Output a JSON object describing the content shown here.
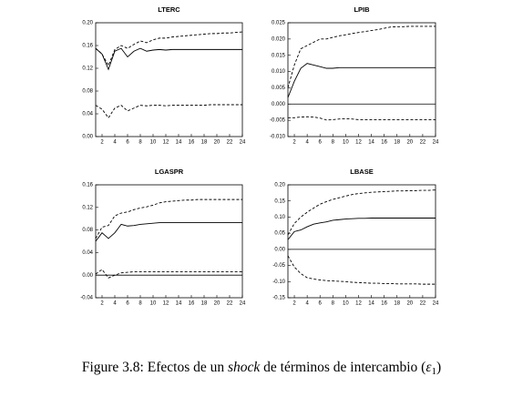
{
  "chart_data": [
    {
      "type": "line",
      "title": "LTERC",
      "x": [
        1,
        2,
        3,
        4,
        5,
        6,
        7,
        8,
        9,
        10,
        11,
        12,
        13,
        14,
        15,
        16,
        17,
        18,
        19,
        20,
        21,
        22,
        23,
        24
      ],
      "xlim": [
        1,
        24
      ],
      "xticks": [
        2,
        4,
        6,
        8,
        10,
        12,
        14,
        16,
        18,
        20,
        22,
        24
      ],
      "ylim": [
        0,
        0.2
      ],
      "yticks": [
        {
          "value": 0,
          "label": "0.00"
        },
        {
          "value": 0.04,
          "label": "0.04"
        },
        {
          "value": 0.08,
          "label": "0.08"
        },
        {
          "value": 0.12,
          "label": "0.12"
        },
        {
          "value": 0.16,
          "label": "0.16"
        },
        {
          "value": 0.2,
          "label": "0.20"
        }
      ],
      "zero_line": false,
      "series": [
        {
          "color": "#000000",
          "dashed": false,
          "values": [
            0.155,
            0.145,
            0.118,
            0.15,
            0.155,
            0.14,
            0.15,
            0.155,
            0.15,
            0.152,
            0.153,
            0.152,
            0.153,
            0.153,
            0.153,
            0.153,
            0.153,
            0.153,
            0.153,
            0.153,
            0.153,
            0.153,
            0.153,
            0.153
          ]
        },
        {
          "color": "#000000",
          "dashed": true,
          "values": [
            0.155,
            0.145,
            0.125,
            0.153,
            0.16,
            0.155,
            0.162,
            0.168,
            0.165,
            0.17,
            0.173,
            0.173,
            0.175,
            0.176,
            0.177,
            0.178,
            0.179,
            0.18,
            0.181,
            0.181,
            0.182,
            0.182,
            0.183,
            0.184
          ]
        },
        {
          "color": "#000000",
          "dashed": true,
          "values": [
            0.055,
            0.048,
            0.033,
            0.05,
            0.055,
            0.045,
            0.05,
            0.055,
            0.054,
            0.055,
            0.055,
            0.054,
            0.055,
            0.055,
            0.055,
            0.055,
            0.055,
            0.055,
            0.056,
            0.056,
            0.056,
            0.056,
            0.056,
            0.056
          ]
        }
      ]
    },
    {
      "type": "line",
      "title": "LPIB",
      "x": [
        1,
        2,
        3,
        4,
        5,
        6,
        7,
        8,
        9,
        10,
        11,
        12,
        13,
        14,
        15,
        16,
        17,
        18,
        19,
        20,
        21,
        22,
        23,
        24
      ],
      "xlim": [
        1,
        24
      ],
      "xticks": [
        2,
        4,
        6,
        8,
        10,
        12,
        14,
        16,
        18,
        20,
        22,
        24
      ],
      "ylim": [
        -0.01,
        0.025
      ],
      "yticks": [
        {
          "value": -0.01,
          "label": "-0.010"
        },
        {
          "value": -0.005,
          "label": "-0.005"
        },
        {
          "value": 0,
          "label": "0.000"
        },
        {
          "value": 0.005,
          "label": "0.005"
        },
        {
          "value": 0.01,
          "label": "0.010"
        },
        {
          "value": 0.015,
          "label": "0.015"
        },
        {
          "value": 0.02,
          "label": "0.020"
        },
        {
          "value": 0.025,
          "label": "0.025"
        }
      ],
      "zero_line": true,
      "series": [
        {
          "color": "#000000",
          "dashed": false,
          "values": [
            0.002,
            0.007,
            0.011,
            0.0125,
            0.012,
            0.0115,
            0.011,
            0.011,
            0.0112,
            0.0112,
            0.0112,
            0.0112,
            0.0112,
            0.0112,
            0.0112,
            0.0112,
            0.0112,
            0.0112,
            0.0112,
            0.0112,
            0.0112,
            0.0112,
            0.0112,
            0.0112
          ]
        },
        {
          "color": "#000000",
          "dashed": true,
          "values": [
            0.005,
            0.012,
            0.017,
            0.018,
            0.019,
            0.02,
            0.02,
            0.0205,
            0.021,
            0.0213,
            0.0217,
            0.022,
            0.0223,
            0.0226,
            0.0229,
            0.0233,
            0.0237,
            0.0238,
            0.0238,
            0.0239,
            0.0239,
            0.0239,
            0.0239,
            0.0239
          ]
        },
        {
          "color": "#000000",
          "dashed": true,
          "values": [
            -0.0042,
            -0.0042,
            -0.004,
            -0.0039,
            -0.004,
            -0.0043,
            -0.0049,
            -0.0048,
            -0.0046,
            -0.0045,
            -0.0046,
            -0.0048,
            -0.0048,
            -0.0048,
            -0.0048,
            -0.0048,
            -0.0048,
            -0.0048,
            -0.0048,
            -0.0048,
            -0.0048,
            -0.0048,
            -0.0048,
            -0.0048
          ]
        }
      ]
    },
    {
      "type": "line",
      "title": "LGASPR",
      "x": [
        1,
        2,
        3,
        4,
        5,
        6,
        7,
        8,
        9,
        10,
        11,
        12,
        13,
        14,
        15,
        16,
        17,
        18,
        19,
        20,
        21,
        22,
        23,
        24
      ],
      "xlim": [
        1,
        24
      ],
      "xticks": [
        2,
        4,
        6,
        8,
        10,
        12,
        14,
        16,
        18,
        20,
        22,
        24
      ],
      "ylim": [
        -0.04,
        0.16
      ],
      "yticks": [
        {
          "value": -0.04,
          "label": "-0.04"
        },
        {
          "value": 0,
          "label": "0.00"
        },
        {
          "value": 0.04,
          "label": "0.04"
        },
        {
          "value": 0.08,
          "label": "0.08"
        },
        {
          "value": 0.12,
          "label": "0.12"
        },
        {
          "value": 0.16,
          "label": "0.16"
        }
      ],
      "zero_line": true,
      "series": [
        {
          "color": "#000000",
          "dashed": false,
          "values": [
            0.06,
            0.075,
            0.065,
            0.075,
            0.09,
            0.087,
            0.088,
            0.09,
            0.091,
            0.092,
            0.093,
            0.093,
            0.093,
            0.093,
            0.093,
            0.093,
            0.093,
            0.093,
            0.093,
            0.093,
            0.093,
            0.093,
            0.093,
            0.093
          ]
        },
        {
          "color": "#000000",
          "dashed": true,
          "values": [
            0.065,
            0.085,
            0.088,
            0.105,
            0.11,
            0.112,
            0.116,
            0.119,
            0.121,
            0.124,
            0.128,
            0.13,
            0.131,
            0.132,
            0.133,
            0.133,
            0.134,
            0.134,
            0.134,
            0.134,
            0.134,
            0.134,
            0.134,
            0.134
          ]
        },
        {
          "color": "#000000",
          "dashed": true,
          "values": [
            0.002,
            0.01,
            -0.005,
            0,
            0.004,
            0.005,
            0.006,
            0.006,
            0.006,
            0.006,
            0.006,
            0.006,
            0.006,
            0.006,
            0.006,
            0.006,
            0.006,
            0.006,
            0.006,
            0.006,
            0.006,
            0.006,
            0.006,
            0.006
          ]
        }
      ]
    },
    {
      "type": "line",
      "title": "LBASE",
      "x": [
        1,
        2,
        3,
        4,
        5,
        6,
        7,
        8,
        9,
        10,
        11,
        12,
        13,
        14,
        15,
        16,
        17,
        18,
        19,
        20,
        21,
        22,
        23,
        24
      ],
      "xlim": [
        1,
        24
      ],
      "xticks": [
        2,
        4,
        6,
        8,
        10,
        12,
        14,
        16,
        18,
        20,
        22,
        24
      ],
      "ylim": [
        -0.15,
        0.2
      ],
      "yticks": [
        {
          "value": -0.15,
          "label": "-0.15"
        },
        {
          "value": -0.1,
          "label": "-0.10"
        },
        {
          "value": -0.05,
          "label": "-0.05"
        },
        {
          "value": 0,
          "label": "0.00"
        },
        {
          "value": 0.05,
          "label": "0.05"
        },
        {
          "value": 0.1,
          "label": "0.10"
        },
        {
          "value": 0.15,
          "label": "0.15"
        },
        {
          "value": 0.2,
          "label": "0.20"
        }
      ],
      "zero_line": true,
      "series": [
        {
          "color": "#000000",
          "dashed": false,
          "values": [
            0.03,
            0.055,
            0.06,
            0.07,
            0.078,
            0.082,
            0.085,
            0.09,
            0.092,
            0.094,
            0.095,
            0.096,
            0.096,
            0.097,
            0.097,
            0.097,
            0.097,
            0.097,
            0.097,
            0.097,
            0.097,
            0.097,
            0.097,
            0.097
          ]
        },
        {
          "color": "#000000",
          "dashed": true,
          "values": [
            0.045,
            0.08,
            0.1,
            0.115,
            0.128,
            0.14,
            0.148,
            0.155,
            0.16,
            0.165,
            0.17,
            0.173,
            0.175,
            0.177,
            0.178,
            0.179,
            0.18,
            0.181,
            0.181,
            0.182,
            0.182,
            0.183,
            0.183,
            0.184
          ]
        },
        {
          "color": "#000000",
          "dashed": true,
          "values": [
            -0.02,
            -0.055,
            -0.075,
            -0.088,
            -0.092,
            -0.095,
            -0.097,
            -0.098,
            -0.099,
            -0.1,
            -0.102,
            -0.103,
            -0.104,
            -0.105,
            -0.105,
            -0.106,
            -0.106,
            -0.107,
            -0.107,
            -0.107,
            -0.107,
            -0.108,
            -0.108,
            -0.108
          ]
        }
      ]
    }
  ],
  "caption": {
    "label": "Figure 3.8:",
    "before": "Efectos de un",
    "emphasis": "shock",
    "after": "de términos de intercambio (",
    "symbol": "ε",
    "subscript": "1",
    "close": ")"
  }
}
